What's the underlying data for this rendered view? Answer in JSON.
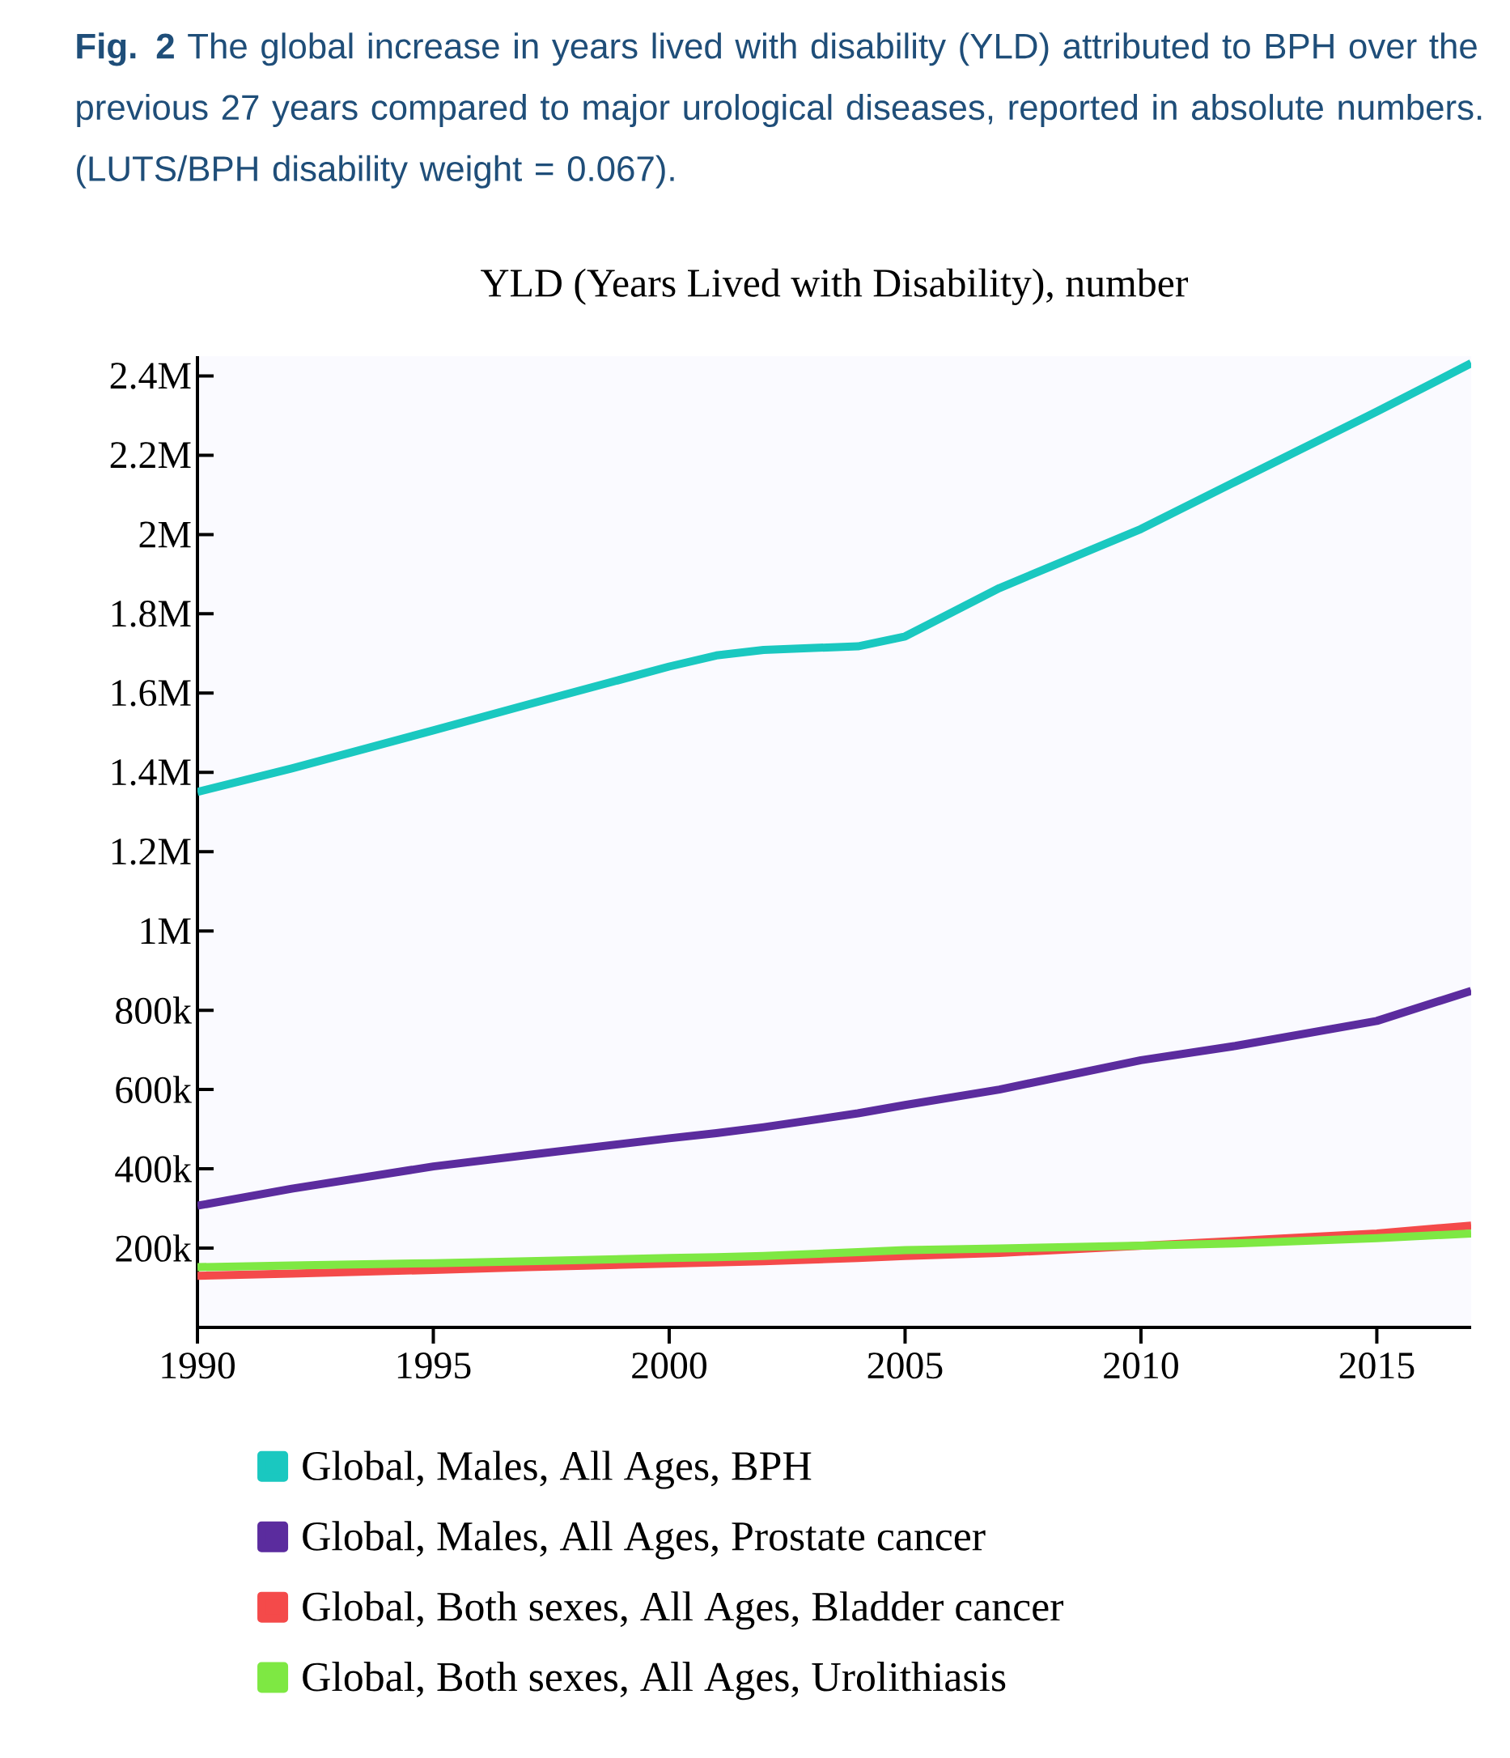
{
  "chart_data": {
    "type": "line",
    "title": "**Fig. 2** The global increase in years lived with disability (YLD) attributed to BPH over the previous 27 years compared to major urological diseases, reported in absolute numbers. (LUTS/BPH disability weight = 0.067).",
    "subtitle": "YLD (Years Lived with Disability), number",
    "x": [
      1990,
      1992,
      1995,
      1997,
      2000,
      2001,
      2002,
      2004,
      2005,
      2007,
      2010,
      2012,
      2015,
      2017
    ],
    "series": [
      {
        "name": "Global, Males, All Ages, BPH",
        "color": "#1ac8c0",
        "values": [
          1351000,
          1410000,
          1506000,
          1571000,
          1667000,
          1695000,
          1709000,
          1718000,
          1743000,
          1865000,
          2014000,
          2133000,
          2310000,
          2432000
        ]
      },
      {
        "name": "Global, Males, All Ages, Prostate cancer",
        "color": "#5b2c9e",
        "values": [
          307000,
          350000,
          406000,
          435000,
          477000,
          490000,
          505000,
          540000,
          561000,
          600000,
          674000,
          710000,
          773000,
          849000
        ]
      },
      {
        "name": "Global, Both sexes, All Ages, Bladder cancer",
        "color": "#f44a4a",
        "values": [
          130000,
          136000,
          145000,
          152000,
          161000,
          164000,
          167000,
          175000,
          180000,
          188000,
          206000,
          218000,
          237000,
          257000
        ]
      },
      {
        "name": "Global, Both sexes, All Ages, Urolithiasis",
        "color": "#7ee843",
        "values": [
          152000,
          156000,
          162000,
          167000,
          175000,
          177000,
          180000,
          190000,
          195000,
          199000,
          206000,
          212000,
          225000,
          237000
        ]
      }
    ],
    "xlim": [
      1990,
      2017
    ],
    "ylim": [
      0,
      2450000
    ],
    "xticks": [
      1990,
      1995,
      2000,
      2005,
      2010,
      2015
    ],
    "yticks": [
      {
        "value": 200000,
        "label": "200k"
      },
      {
        "value": 400000,
        "label": "400k"
      },
      {
        "value": 600000,
        "label": "600k"
      },
      {
        "value": 800000,
        "label": "800k"
      },
      {
        "value": 1000000,
        "label": "1M"
      },
      {
        "value": 1200000,
        "label": "1.2M"
      },
      {
        "value": 1400000,
        "label": "1.4M"
      },
      {
        "value": 1600000,
        "label": "1.6M"
      },
      {
        "value": 1800000,
        "label": "1.8M"
      },
      {
        "value": 2000000,
        "label": "2M"
      },
      {
        "value": 2200000,
        "label": "2.2M"
      },
      {
        "value": 2400000,
        "label": "2.4M"
      }
    ],
    "grid": false,
    "legend": "bottom",
    "marker": "none",
    "line_style": "solid"
  }
}
